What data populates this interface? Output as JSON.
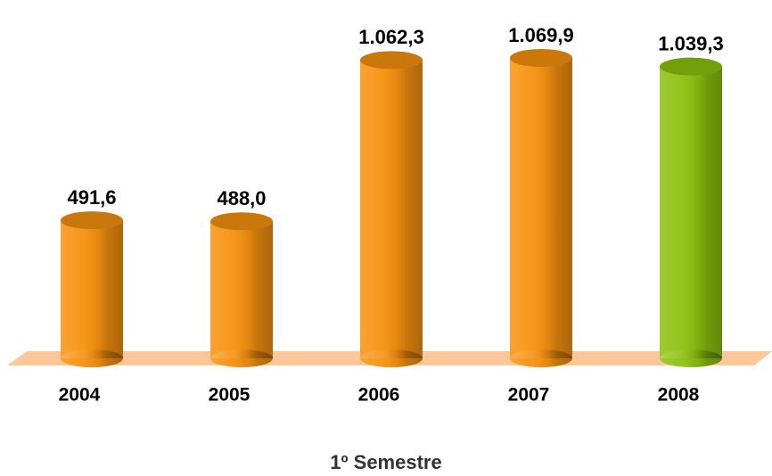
{
  "chart_data": {
    "type": "bar",
    "categories": [
      "2004",
      "2005",
      "2006",
      "2007",
      "2008"
    ],
    "values": [
      491.6,
      488.0,
      1062.3,
      1069.9,
      1039.3
    ],
    "value_labels": [
      "491,6",
      "488,0",
      "1.062,3",
      "1.069,9",
      "1.039,3"
    ],
    "colors": [
      "#f7920f",
      "#f7920f",
      "#f7920f",
      "#f7920f",
      "#8cc20f"
    ],
    "x_label": "1º Semestre"
  }
}
